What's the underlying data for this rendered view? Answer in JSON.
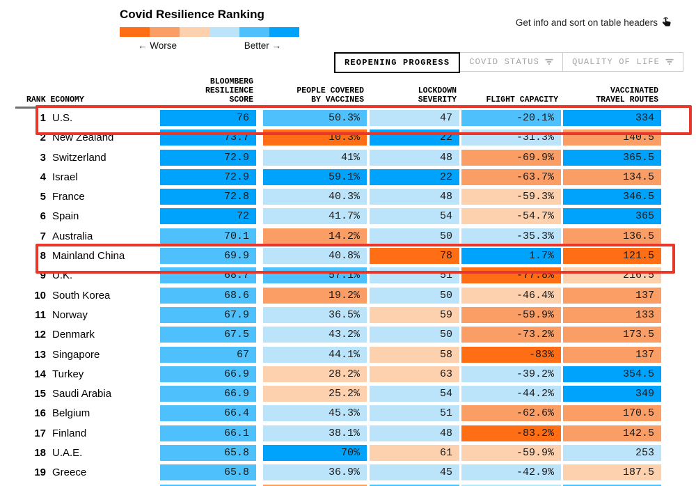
{
  "title": "Covid Resilience Ranking",
  "legend": {
    "worse_label": "← Worse",
    "better_label": "Better →",
    "colors": [
      "#ff6e14",
      "#fb9e65",
      "#fdd0ae",
      "#bbe3fa",
      "#4ec0fb",
      "#00a3fb"
    ]
  },
  "info_hint": {
    "text": "Get info and sort on table headers",
    "icon": "hand-click-icon"
  },
  "tabs": [
    {
      "label": "REOPENING PROGRESS",
      "active": true,
      "filter_icon": false
    },
    {
      "label": "COVID STATUS",
      "active": false,
      "filter_icon": true
    },
    {
      "label": "QUALITY OF LIFE",
      "active": false,
      "filter_icon": true
    }
  ],
  "columns": [
    {
      "id": "rank-economy",
      "lines": [
        "RANK ECONOMY"
      ]
    },
    {
      "id": "resilience-score",
      "lines": [
        "BLOOMBERG",
        "RESILIENCE",
        "SCORE"
      ]
    },
    {
      "id": "people-covered-by-vaccines",
      "lines": [
        "PEOPLE COVERED",
        "BY VACCINES"
      ]
    },
    {
      "id": "lockdown-severity",
      "lines": [
        "LOCKDOWN",
        "SEVERITY"
      ]
    },
    {
      "id": "flight-capacity",
      "lines": [
        "FLIGHT CAPACITY"
      ]
    },
    {
      "id": "vaccinated-travel-routes",
      "lines": [
        "VACCINATED",
        "TRAVEL ROUTES"
      ]
    }
  ],
  "palette": {
    "o3": "#ff6e14",
    "o2": "#fb9e65",
    "o1": "#fdd0ae",
    "b1": "#bbe3fa",
    "b2": "#4ec0fb",
    "b3": "#00a3fb"
  },
  "annotation_color": "#e7372b",
  "rows": [
    {
      "rank": "1",
      "economy": "U.S.",
      "score": {
        "v": "76",
        "c": "b3"
      },
      "vaccines": {
        "v": "50.3%",
        "c": "b2"
      },
      "lockdown": {
        "v": "47",
        "c": "b1"
      },
      "flight": {
        "v": "-20.1%",
        "c": "b2"
      },
      "routes": {
        "v": "334",
        "c": "b3"
      },
      "highlighted": true
    },
    {
      "rank": "2",
      "economy": "New Zealand",
      "score": {
        "v": "73.7",
        "c": "b3"
      },
      "vaccines": {
        "v": "10.3%",
        "c": "o3"
      },
      "lockdown": {
        "v": "22",
        "c": "b3"
      },
      "flight": {
        "v": "-31.3%",
        "c": "b1"
      },
      "routes": {
        "v": "140.5",
        "c": "o2"
      },
      "highlighted": false
    },
    {
      "rank": "3",
      "economy": "Switzerland",
      "score": {
        "v": "72.9",
        "c": "b3"
      },
      "vaccines": {
        "v": "41%",
        "c": "b1"
      },
      "lockdown": {
        "v": "48",
        "c": "b1"
      },
      "flight": {
        "v": "-69.9%",
        "c": "o2"
      },
      "routes": {
        "v": "365.5",
        "c": "b3"
      },
      "highlighted": false
    },
    {
      "rank": "4",
      "economy": "Israel",
      "score": {
        "v": "72.9",
        "c": "b3"
      },
      "vaccines": {
        "v": "59.1%",
        "c": "b3"
      },
      "lockdown": {
        "v": "22",
        "c": "b3"
      },
      "flight": {
        "v": "-63.7%",
        "c": "o2"
      },
      "routes": {
        "v": "134.5",
        "c": "o2"
      },
      "highlighted": false
    },
    {
      "rank": "5",
      "economy": "France",
      "score": {
        "v": "72.8",
        "c": "b3"
      },
      "vaccines": {
        "v": "40.3%",
        "c": "b1"
      },
      "lockdown": {
        "v": "48",
        "c": "b1"
      },
      "flight": {
        "v": "-59.3%",
        "c": "o1"
      },
      "routes": {
        "v": "346.5",
        "c": "b3"
      },
      "highlighted": false
    },
    {
      "rank": "6",
      "economy": "Spain",
      "score": {
        "v": "72",
        "c": "b3"
      },
      "vaccines": {
        "v": "41.7%",
        "c": "b1"
      },
      "lockdown": {
        "v": "54",
        "c": "b1"
      },
      "flight": {
        "v": "-54.7%",
        "c": "o1"
      },
      "routes": {
        "v": "365",
        "c": "b3"
      },
      "highlighted": false
    },
    {
      "rank": "7",
      "economy": "Australia",
      "score": {
        "v": "70.1",
        "c": "b2"
      },
      "vaccines": {
        "v": "14.2%",
        "c": "o2"
      },
      "lockdown": {
        "v": "50",
        "c": "b1"
      },
      "flight": {
        "v": "-35.3%",
        "c": "b1"
      },
      "routes": {
        "v": "136.5",
        "c": "o2"
      },
      "highlighted": false
    },
    {
      "rank": "8",
      "economy": "Mainland China",
      "score": {
        "v": "69.9",
        "c": "b2"
      },
      "vaccines": {
        "v": "40.8%",
        "c": "b1"
      },
      "lockdown": {
        "v": "78",
        "c": "o3"
      },
      "flight": {
        "v": "1.7%",
        "c": "b3"
      },
      "routes": {
        "v": "121.5",
        "c": "o3"
      },
      "highlighted": true
    },
    {
      "rank": "9",
      "economy": "U.K.",
      "score": {
        "v": "68.7",
        "c": "b2"
      },
      "vaccines": {
        "v": "57.1%",
        "c": "b2"
      },
      "lockdown": {
        "v": "51",
        "c": "b1"
      },
      "flight": {
        "v": "-77.8%",
        "c": "o3"
      },
      "routes": {
        "v": "216.5",
        "c": "o1"
      },
      "highlighted": false
    },
    {
      "rank": "10",
      "economy": "South Korea",
      "score": {
        "v": "68.6",
        "c": "b2"
      },
      "vaccines": {
        "v": "19.2%",
        "c": "o2"
      },
      "lockdown": {
        "v": "50",
        "c": "b1"
      },
      "flight": {
        "v": "-46.4%",
        "c": "o1"
      },
      "routes": {
        "v": "137",
        "c": "o2"
      },
      "highlighted": false
    },
    {
      "rank": "11",
      "economy": "Norway",
      "score": {
        "v": "67.9",
        "c": "b2"
      },
      "vaccines": {
        "v": "36.5%",
        "c": "b1"
      },
      "lockdown": {
        "v": "59",
        "c": "o1"
      },
      "flight": {
        "v": "-59.9%",
        "c": "o2"
      },
      "routes": {
        "v": "133",
        "c": "o2"
      },
      "highlighted": false
    },
    {
      "rank": "12",
      "economy": "Denmark",
      "score": {
        "v": "67.5",
        "c": "b2"
      },
      "vaccines": {
        "v": "43.2%",
        "c": "b1"
      },
      "lockdown": {
        "v": "50",
        "c": "b1"
      },
      "flight": {
        "v": "-73.2%",
        "c": "o2"
      },
      "routes": {
        "v": "173.5",
        "c": "o2"
      },
      "highlighted": false
    },
    {
      "rank": "13",
      "economy": "Singapore",
      "score": {
        "v": "67",
        "c": "b2"
      },
      "vaccines": {
        "v": "44.1%",
        "c": "b1"
      },
      "lockdown": {
        "v": "58",
        "c": "o1"
      },
      "flight": {
        "v": "-83%",
        "c": "o3"
      },
      "routes": {
        "v": "137",
        "c": "o2"
      },
      "highlighted": false
    },
    {
      "rank": "14",
      "economy": "Turkey",
      "score": {
        "v": "66.9",
        "c": "b2"
      },
      "vaccines": {
        "v": "28.2%",
        "c": "o1"
      },
      "lockdown": {
        "v": "63",
        "c": "o1"
      },
      "flight": {
        "v": "-39.2%",
        "c": "b1"
      },
      "routes": {
        "v": "354.5",
        "c": "b3"
      },
      "highlighted": false
    },
    {
      "rank": "15",
      "economy": "Saudi Arabia",
      "score": {
        "v": "66.9",
        "c": "b2"
      },
      "vaccines": {
        "v": "25.2%",
        "c": "o1"
      },
      "lockdown": {
        "v": "54",
        "c": "b1"
      },
      "flight": {
        "v": "-44.2%",
        "c": "b1"
      },
      "routes": {
        "v": "349",
        "c": "b3"
      },
      "highlighted": false
    },
    {
      "rank": "16",
      "economy": "Belgium",
      "score": {
        "v": "66.4",
        "c": "b2"
      },
      "vaccines": {
        "v": "45.3%",
        "c": "b1"
      },
      "lockdown": {
        "v": "51",
        "c": "b1"
      },
      "flight": {
        "v": "-62.6%",
        "c": "o2"
      },
      "routes": {
        "v": "170.5",
        "c": "o2"
      },
      "highlighted": false
    },
    {
      "rank": "17",
      "economy": "Finland",
      "score": {
        "v": "66.1",
        "c": "b2"
      },
      "vaccines": {
        "v": "38.1%",
        "c": "b1"
      },
      "lockdown": {
        "v": "48",
        "c": "b1"
      },
      "flight": {
        "v": "-83.2%",
        "c": "o3"
      },
      "routes": {
        "v": "142.5",
        "c": "o2"
      },
      "highlighted": false
    },
    {
      "rank": "18",
      "economy": "U.A.E.",
      "score": {
        "v": "65.8",
        "c": "b2"
      },
      "vaccines": {
        "v": "70%",
        "c": "b3"
      },
      "lockdown": {
        "v": "61",
        "c": "o1"
      },
      "flight": {
        "v": "-59.9%",
        "c": "o1"
      },
      "routes": {
        "v": "253",
        "c": "b1"
      },
      "highlighted": false
    },
    {
      "rank": "19",
      "economy": "Greece",
      "score": {
        "v": "65.8",
        "c": "b2"
      },
      "vaccines": {
        "v": "36.9%",
        "c": "b1"
      },
      "lockdown": {
        "v": "45",
        "c": "b1"
      },
      "flight": {
        "v": "-42.9%",
        "c": "b1"
      },
      "routes": {
        "v": "187.5",
        "c": "o1"
      },
      "highlighted": false
    }
  ],
  "partial_row": {
    "colors": [
      "b2",
      "o2",
      "b2",
      "b1",
      "b2"
    ]
  },
  "chart_data": {
    "type": "table",
    "title": "Covid Resilience Ranking",
    "legend": {
      "left": "Worse",
      "right": "Better"
    },
    "columns": [
      "Rank",
      "Economy",
      "Bloomberg Resilience Score",
      "People Covered by Vaccines",
      "Lockdown Severity",
      "Flight Capacity",
      "Vaccinated Travel Routes"
    ],
    "rows": [
      [
        1,
        "U.S.",
        76,
        "50.3%",
        47,
        "-20.1%",
        334
      ],
      [
        2,
        "New Zealand",
        73.7,
        "10.3%",
        22,
        "-31.3%",
        140.5
      ],
      [
        3,
        "Switzerland",
        72.9,
        "41%",
        48,
        "-69.9%",
        365.5
      ],
      [
        4,
        "Israel",
        72.9,
        "59.1%",
        22,
        "-63.7%",
        134.5
      ],
      [
        5,
        "France",
        72.8,
        "40.3%",
        48,
        "-59.3%",
        346.5
      ],
      [
        6,
        "Spain",
        72,
        "41.7%",
        54,
        "-54.7%",
        365
      ],
      [
        7,
        "Australia",
        70.1,
        "14.2%",
        50,
        "-35.3%",
        136.5
      ],
      [
        8,
        "Mainland China",
        69.9,
        "40.8%",
        78,
        "1.7%",
        121.5
      ],
      [
        9,
        "U.K.",
        68.7,
        "57.1%",
        51,
        "-77.8%",
        216.5
      ],
      [
        10,
        "South Korea",
        68.6,
        "19.2%",
        50,
        "-46.4%",
        137
      ],
      [
        11,
        "Norway",
        67.9,
        "36.5%",
        59,
        "-59.9%",
        133
      ],
      [
        12,
        "Denmark",
        67.5,
        "43.2%",
        50,
        "-73.2%",
        173.5
      ],
      [
        13,
        "Singapore",
        67,
        "44.1%",
        58,
        "-83%",
        137
      ],
      [
        14,
        "Turkey",
        66.9,
        "28.2%",
        63,
        "-39.2%",
        354.5
      ],
      [
        15,
        "Saudi Arabia",
        66.9,
        "25.2%",
        54,
        "-44.2%",
        349
      ],
      [
        16,
        "Belgium",
        66.4,
        "45.3%",
        51,
        "-62.6%",
        170.5
      ],
      [
        17,
        "Finland",
        66.1,
        "38.1%",
        48,
        "-83.2%",
        142.5
      ],
      [
        18,
        "U.A.E.",
        65.8,
        "70%",
        61,
        "-59.9%",
        253
      ],
      [
        19,
        "Greece",
        65.8,
        "36.9%",
        45,
        "-42.9%",
        187.5
      ]
    ],
    "highlighted_rows": [
      "U.S.",
      "Mainland China"
    ]
  }
}
